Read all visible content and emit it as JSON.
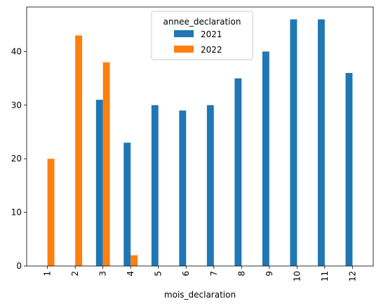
{
  "chart_data": {
    "type": "bar",
    "title": "",
    "xlabel": "mois_declaration",
    "ylabel": "",
    "categories": [
      "1",
      "2",
      "3",
      "4",
      "5",
      "6",
      "7",
      "8",
      "9",
      "10",
      "11",
      "12"
    ],
    "series": [
      {
        "name": "2021",
        "color": "#1f77b4",
        "values": [
          0,
          0,
          31,
          23,
          30,
          29,
          30,
          35,
          40,
          46,
          46,
          36
        ]
      },
      {
        "name": "2022",
        "color": "#ff7f0e",
        "values": [
          20,
          43,
          38,
          2,
          0,
          0,
          0,
          0,
          0,
          0,
          0,
          0
        ]
      }
    ],
    "ylim": [
      0,
      48.3
    ],
    "yticks": [
      0,
      10,
      20,
      30,
      40
    ],
    "legend": {
      "title": "annee_declaration",
      "placement": "upper-center"
    },
    "grid": false
  }
}
